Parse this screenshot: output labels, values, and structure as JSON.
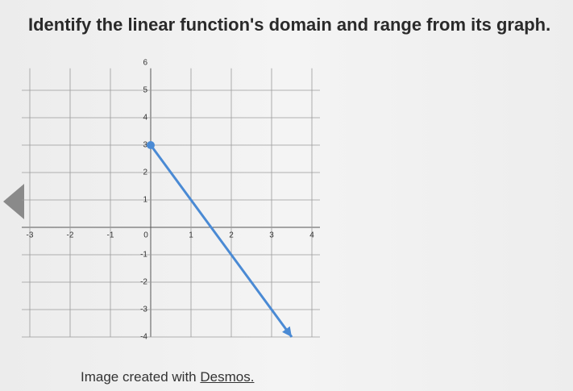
{
  "question": "Identify the linear function's domain and range from its graph.",
  "chart_data": {
    "type": "line",
    "x": [
      0,
      3.5
    ],
    "values": [
      3,
      -4
    ],
    "color": "#4a8ad4",
    "xlim": [
      -3.2,
      4.2
    ],
    "ylim": [
      -4,
      5.8
    ],
    "xticks": [
      -3,
      -2,
      -1,
      0,
      1,
      2,
      3,
      4
    ],
    "yticks": [
      -4,
      -3,
      -2,
      -1,
      1,
      2,
      3,
      4,
      5,
      6
    ],
    "grid": true
  },
  "caption": {
    "text": "Image created with",
    "link": "Desmos."
  }
}
